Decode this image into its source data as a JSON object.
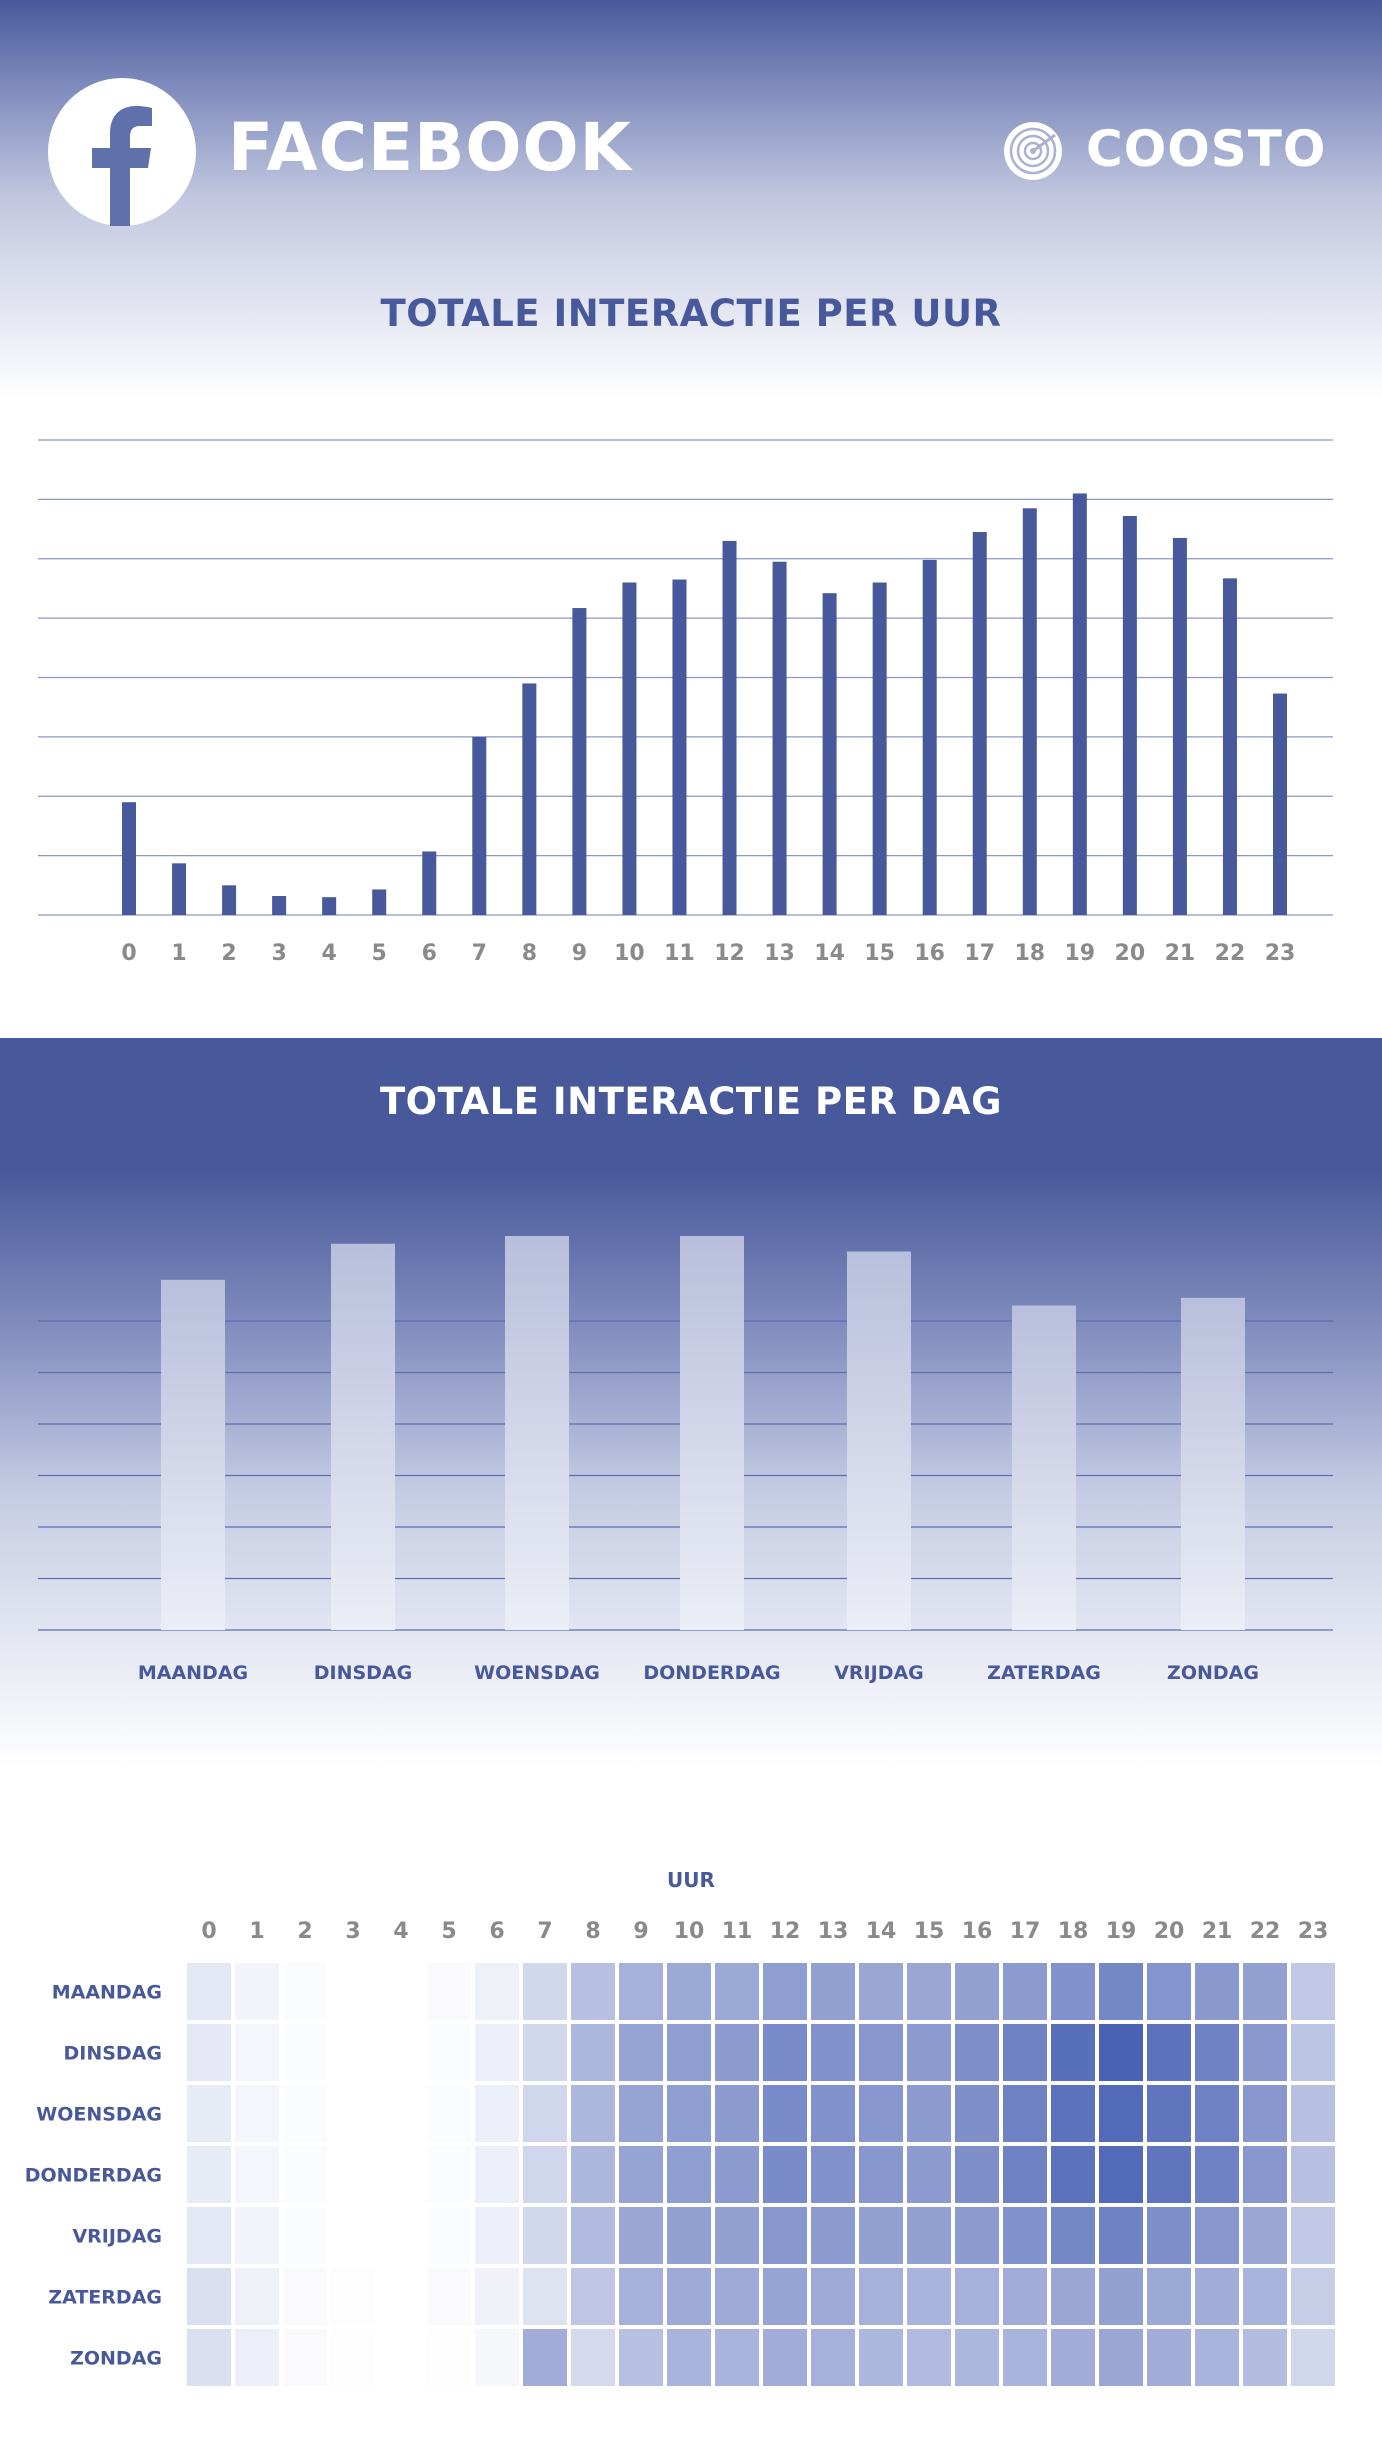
{
  "header": {
    "brand_title": "FACEBOOK",
    "brand_icon": "facebook-f-icon",
    "partner_name": "COOSTO",
    "partner_icon": "coosto-radar-icon"
  },
  "colors": {
    "primary": "#47599a",
    "bar_hourly": "#47599a",
    "grid": "#8b97c6",
    "tick_label": "#8a8a8a",
    "heat_low": "#ffffff",
    "heat_high": "#4a62b4"
  },
  "chart_data": [
    {
      "type": "bar",
      "title": "TOTALE INTERACTIE PER UUR",
      "categories": [
        "0",
        "1",
        "2",
        "3",
        "4",
        "5",
        "6",
        "7",
        "8",
        "9",
        "10",
        "11",
        "12",
        "13",
        "14",
        "15",
        "16",
        "17",
        "18",
        "19",
        "20",
        "21",
        "22",
        "23"
      ],
      "values": [
        1.9,
        0.87,
        0.5,
        0.32,
        0.3,
        0.43,
        1.07,
        3.0,
        3.9,
        5.17,
        5.6,
        5.65,
        6.3,
        5.95,
        5.42,
        5.6,
        5.98,
        6.45,
        6.85,
        7.1,
        6.72,
        6.35,
        5.67,
        3.73
      ],
      "ylim": [
        0,
        8
      ],
      "y_ticks_shown": false,
      "grid": true
    },
    {
      "type": "bar",
      "title": "TOTALE INTERACTIE PER DAG",
      "categories": [
        "MAANDAG",
        "DINSDAG",
        "WOENSDAG",
        "DONDERDAG",
        "VRIJDAG",
        "ZATERDAG",
        "ZONDAG"
      ],
      "values": [
        6.8,
        7.5,
        7.65,
        7.65,
        7.35,
        6.3,
        6.45
      ],
      "ylim": [
        0,
        6
      ],
      "y_ticks_shown": false,
      "grid": true
    },
    {
      "type": "heatmap",
      "xlabel": "UUR",
      "x": [
        "0",
        "1",
        "2",
        "3",
        "4",
        "5",
        "6",
        "7",
        "8",
        "9",
        "10",
        "11",
        "12",
        "13",
        "14",
        "15",
        "16",
        "17",
        "18",
        "19",
        "20",
        "21",
        "22",
        "23"
      ],
      "y": [
        "MAANDAG",
        "DINSDAG",
        "WOENSDAG",
        "DONDERDAG",
        "VRIJDAG",
        "ZATERDAG",
        "ZONDAG"
      ],
      "values": [
        [
          0.15,
          0.07,
          0.02,
          0,
          0,
          0.03,
          0.09,
          0.25,
          0.4,
          0.5,
          0.55,
          0.55,
          0.62,
          0.6,
          0.56,
          0.56,
          0.6,
          0.64,
          0.7,
          0.76,
          0.68,
          0.65,
          0.6,
          0.35
        ],
        [
          0.14,
          0.06,
          0.02,
          0,
          0,
          0.02,
          0.1,
          0.25,
          0.46,
          0.58,
          0.62,
          0.64,
          0.74,
          0.7,
          0.66,
          0.64,
          0.72,
          0.8,
          0.92,
          1.0,
          0.9,
          0.8,
          0.65,
          0.37
        ],
        [
          0.13,
          0.06,
          0.02,
          0,
          0,
          0.02,
          0.1,
          0.26,
          0.46,
          0.58,
          0.62,
          0.64,
          0.74,
          0.7,
          0.66,
          0.64,
          0.72,
          0.8,
          0.9,
          0.95,
          0.88,
          0.8,
          0.66,
          0.4
        ],
        [
          0.13,
          0.06,
          0.02,
          0,
          0,
          0.02,
          0.1,
          0.26,
          0.46,
          0.58,
          0.62,
          0.64,
          0.74,
          0.7,
          0.66,
          0.64,
          0.72,
          0.8,
          0.9,
          0.95,
          0.88,
          0.8,
          0.66,
          0.4
        ],
        [
          0.15,
          0.07,
          0.02,
          0,
          0,
          0.02,
          0.1,
          0.25,
          0.44,
          0.56,
          0.6,
          0.6,
          0.66,
          0.64,
          0.6,
          0.6,
          0.64,
          0.7,
          0.76,
          0.8,
          0.72,
          0.66,
          0.56,
          0.35
        ],
        [
          0.2,
          0.09,
          0.03,
          0.01,
          0,
          0.03,
          0.08,
          0.18,
          0.36,
          0.5,
          0.54,
          0.54,
          0.58,
          0.54,
          0.5,
          0.48,
          0.5,
          0.52,
          0.56,
          0.6,
          0.55,
          0.52,
          0.48,
          0.32
        ],
        [
          0.2,
          0.1,
          0.03,
          0.01,
          0,
          0.01,
          0.05,
          0.52,
          0.24,
          0.4,
          0.48,
          0.48,
          0.52,
          0.5,
          0.46,
          0.44,
          0.46,
          0.48,
          0.52,
          0.56,
          0.52,
          0.48,
          0.42,
          0.26
        ]
      ]
    }
  ]
}
